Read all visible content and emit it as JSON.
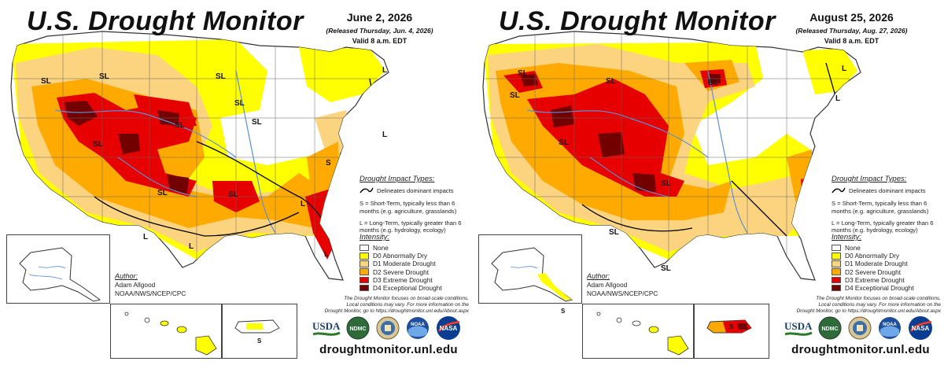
{
  "colors": {
    "none": "#ffffff",
    "d0": "#ffff00",
    "d1": "#fcd37f",
    "d2": "#ffaa00",
    "d3": "#e60000",
    "d4": "#730000",
    "water": "#5b8fd6"
  },
  "panels": [
    {
      "title": "U.S. Drought Monitor",
      "date": "June 2, 2026",
      "released": "(Released Thursday, Jun. 4, 2026)",
      "valid": "Valid 8 a.m. EDT",
      "map_labels": [
        "SL",
        "SL",
        "SL",
        "SL",
        "SL",
        "SL",
        "SL",
        "SL",
        "SL",
        "S",
        "L",
        "L",
        "L",
        "L",
        "L",
        "L"
      ],
      "impact": {
        "title": "Drought Impact Types:",
        "delineates": "Delineates dominant impacts",
        "short_term": "S = Short-Term, typically less than 6 months (e.g. agriculture, grasslands)",
        "long_term": "L = Long-Term, typically greater than 6 months (e.g. hydrology, ecology)"
      },
      "intensity": {
        "title": "Intensity:",
        "levels": [
          "None",
          "D0 Abnormally Dry",
          "D1 Moderate Drought",
          "D2 Severe Drought",
          "D3 Extreme Drought",
          "D4 Exceptional Drought"
        ]
      },
      "author": {
        "title": "Author:",
        "name": "Adam Allgood",
        "org": "NOAA/NWS/NCEP/CPC"
      },
      "disclaimer": [
        "The Drought Monitor focuses on broad-scale conditions.",
        "Local conditions may vary. For more information on the",
        "Drought Monitor, go to https://droughtmonitor.unl.edu/About.aspx"
      ],
      "logos": [
        "USDA",
        "NDMC",
        "NOAA",
        "NASA"
      ],
      "url": "droughtmonitor.unl.edu",
      "inset_labels": [
        "S"
      ]
    },
    {
      "title": "U.S. Drought Monitor",
      "date": "August 25, 2026",
      "released": "(Released Thursday, Aug. 27, 2026)",
      "valid": "Valid 8 a.m. EDT",
      "map_labels": [
        "SL",
        "SL",
        "SL",
        "SL",
        "SL",
        "SL",
        "SL",
        "SL",
        "L",
        "L"
      ],
      "impact": {
        "title": "Drought Impact Types:",
        "delineates": "Delineates dominant impacts",
        "short_term": "S = Short-Term, typically less than 6 months (e.g. agriculture, grasslands)",
        "long_term": "L = Long-Term, typically greater than 6 months (e.g. hydrology, ecology)"
      },
      "intensity": {
        "title": "Intensity:",
        "levels": [
          "None",
          "D0 Abnormally Dry",
          "D1 Moderate Drought",
          "D2 Severe Drought",
          "D3 Extreme Drought",
          "D4 Exceptional Drought"
        ]
      },
      "author": {
        "title": "Author:",
        "name": "Adam Allgood",
        "org": "NOAA/NWS/NCEP/CPC"
      },
      "disclaimer": [
        "The Drought Monitor focuses on broad-scale conditions.",
        "Local conditions may vary. For more information on the",
        "Drought Monitor, go to https://droughtmonitor.unl.edu/About.aspx"
      ],
      "logos": [
        "USDA",
        "NDMC",
        "NOAA",
        "NASA"
      ],
      "url": "droughtmonitor.unl.edu",
      "inset_labels": [
        "S",
        "S"
      ]
    }
  ]
}
